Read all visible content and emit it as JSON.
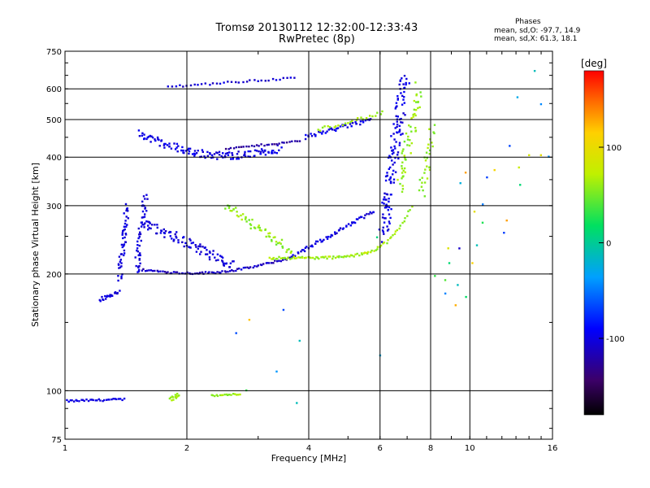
{
  "chart_data": {
    "type": "scatter",
    "title": "Tromsø 20130112 12:32:00-12:33:43",
    "subtitle": "RwPretec (8p)",
    "xlabel": "Frequency [MHz]",
    "ylabel": "Stationary phase Virtual Height [km]",
    "x_scale": "log",
    "y_scale": "log",
    "xlim": [
      1,
      16
    ],
    "ylim": [
      75,
      750
    ],
    "x_ticks": [
      1,
      2,
      4,
      6,
      8,
      10,
      16
    ],
    "x_tick_labels": [
      "1",
      "2",
      "4",
      "6",
      "8",
      "10",
      "16"
    ],
    "y_ticks": [
      75,
      100,
      200,
      300,
      400,
      500,
      600,
      750
    ],
    "y_tick_labels": [
      "75",
      "100",
      "200",
      "300",
      "400",
      "500",
      "600",
      "750"
    ],
    "grid": true,
    "colorbar": {
      "label": "[deg]",
      "range": [
        -180,
        180
      ],
      "ticks": [
        100,
        0,
        -100
      ],
      "tick_labels": [
        "100",
        "0",
        "-100"
      ]
    },
    "phases": {
      "heading": "Phases",
      "o_mode": "mean, sd,O: -97.7, 14.9",
      "x_mode": "mean, sd,X:  61.3, 18.1"
    },
    "segments": [
      {
        "x": [
          1.0,
          1.4
        ],
        "y": [
          94,
          95
        ],
        "n": 34,
        "phase": [
          -105,
          -95
        ],
        "jitter": 0.012
      },
      {
        "x": [
          1.22,
          1.36
        ],
        "y": [
          172,
          180
        ],
        "n": 22,
        "phase": [
          -110,
          -95
        ],
        "jitter": 0.025
      },
      {
        "x": [
          1.36,
          1.43
        ],
        "y": [
          195,
          300
        ],
        "n": 50,
        "phase": [
          -110,
          -95
        ],
        "jitter": 0.05
      },
      {
        "x": [
          1.5,
          1.58
        ],
        "y": [
          200,
          320
        ],
        "n": 50,
        "phase": [
          -110,
          -95
        ],
        "jitter": 0.05
      },
      {
        "x": [
          1.58,
          2.6
        ],
        "y": [
          270,
          210
        ],
        "n": 90,
        "phase": [
          -112,
          -95
        ],
        "jitter": 0.06
      },
      {
        "x": [
          1.55,
          3.6
        ],
        "y": [
          205,
          220
        ],
        "n": 80,
        "phase": [
          -125,
          -100
        ],
        "jitter": 0.012,
        "dip": 0.05
      },
      {
        "x": [
          1.52,
          3.4
        ],
        "y": [
          460,
          420
        ],
        "n": 130,
        "phase": [
          -110,
          -92
        ],
        "jitter": 0.045,
        "dip": 0.08
      },
      {
        "x": [
          2.5,
          3.8
        ],
        "y": [
          420,
          440
        ],
        "n": 30,
        "phase": [
          -135,
          -115
        ],
        "jitter": 0.01
      },
      {
        "x": [
          1.8,
          3.7
        ],
        "y": [
          608,
          640
        ],
        "n": 35,
        "phase": [
          -115,
          -95
        ],
        "jitter": 0.012
      },
      {
        "x": [
          3.6,
          5.8
        ],
        "y": [
          220,
          290
        ],
        "n": 60,
        "phase": [
          -110,
          -92
        ],
        "jitter": 0.02
      },
      {
        "x": [
          3.2,
          7.2
        ],
        "y": [
          220,
          300
        ],
        "n": 90,
        "phase": [
          50,
          75
        ],
        "jitter": 0.015,
        "curve": 6
      },
      {
        "x": [
          2.5,
          3.6
        ],
        "y": [
          300,
          230
        ],
        "n": 55,
        "phase": [
          45,
          70
        ],
        "jitter": 0.05
      },
      {
        "x": [
          3.9,
          5.7
        ],
        "y": [
          450,
          500
        ],
        "n": 45,
        "phase": [
          -110,
          -90
        ],
        "jitter": 0.025
      },
      {
        "x": [
          4.2,
          6.1
        ],
        "y": [
          470,
          520
        ],
        "n": 25,
        "phase": [
          50,
          70
        ],
        "jitter": 0.02
      },
      {
        "x": [
          6.1,
          6.9
        ],
        "y": [
          250,
          640
        ],
        "n": 130,
        "phase": [
          -110,
          -92
        ],
        "jitter": 0.09
      },
      {
        "x": [
          6.7,
          7.5
        ],
        "y": [
          330,
          600
        ],
        "n": 55,
        "phase": [
          48,
          72
        ],
        "jitter": 0.08
      },
      {
        "x": [
          7.6,
          8.1
        ],
        "y": [
          320,
          470
        ],
        "n": 30,
        "phase": [
          45,
          70
        ],
        "jitter": 0.07
      },
      {
        "x": [
          1.82,
          1.92
        ],
        "y": [
          95,
          98
        ],
        "n": 14,
        "phase": [
          55,
          70
        ],
        "jitter": 0.02
      },
      {
        "x": [
          2.3,
          2.7
        ],
        "y": [
          97,
          98
        ],
        "n": 18,
        "phase": [
          50,
          70
        ],
        "jitter": 0.01
      },
      {
        "x": [
          8.3,
          16
        ],
        "y": [
          200,
          600
        ],
        "n": 30,
        "phase": [
          -110,
          140
        ],
        "jitter": 0.35
      },
      {
        "x": [
          2.5,
          7.0
        ],
        "y": [
          100,
          190
        ],
        "n": 10,
        "phase": [
          -110,
          120
        ],
        "jitter": 0.3
      }
    ]
  }
}
